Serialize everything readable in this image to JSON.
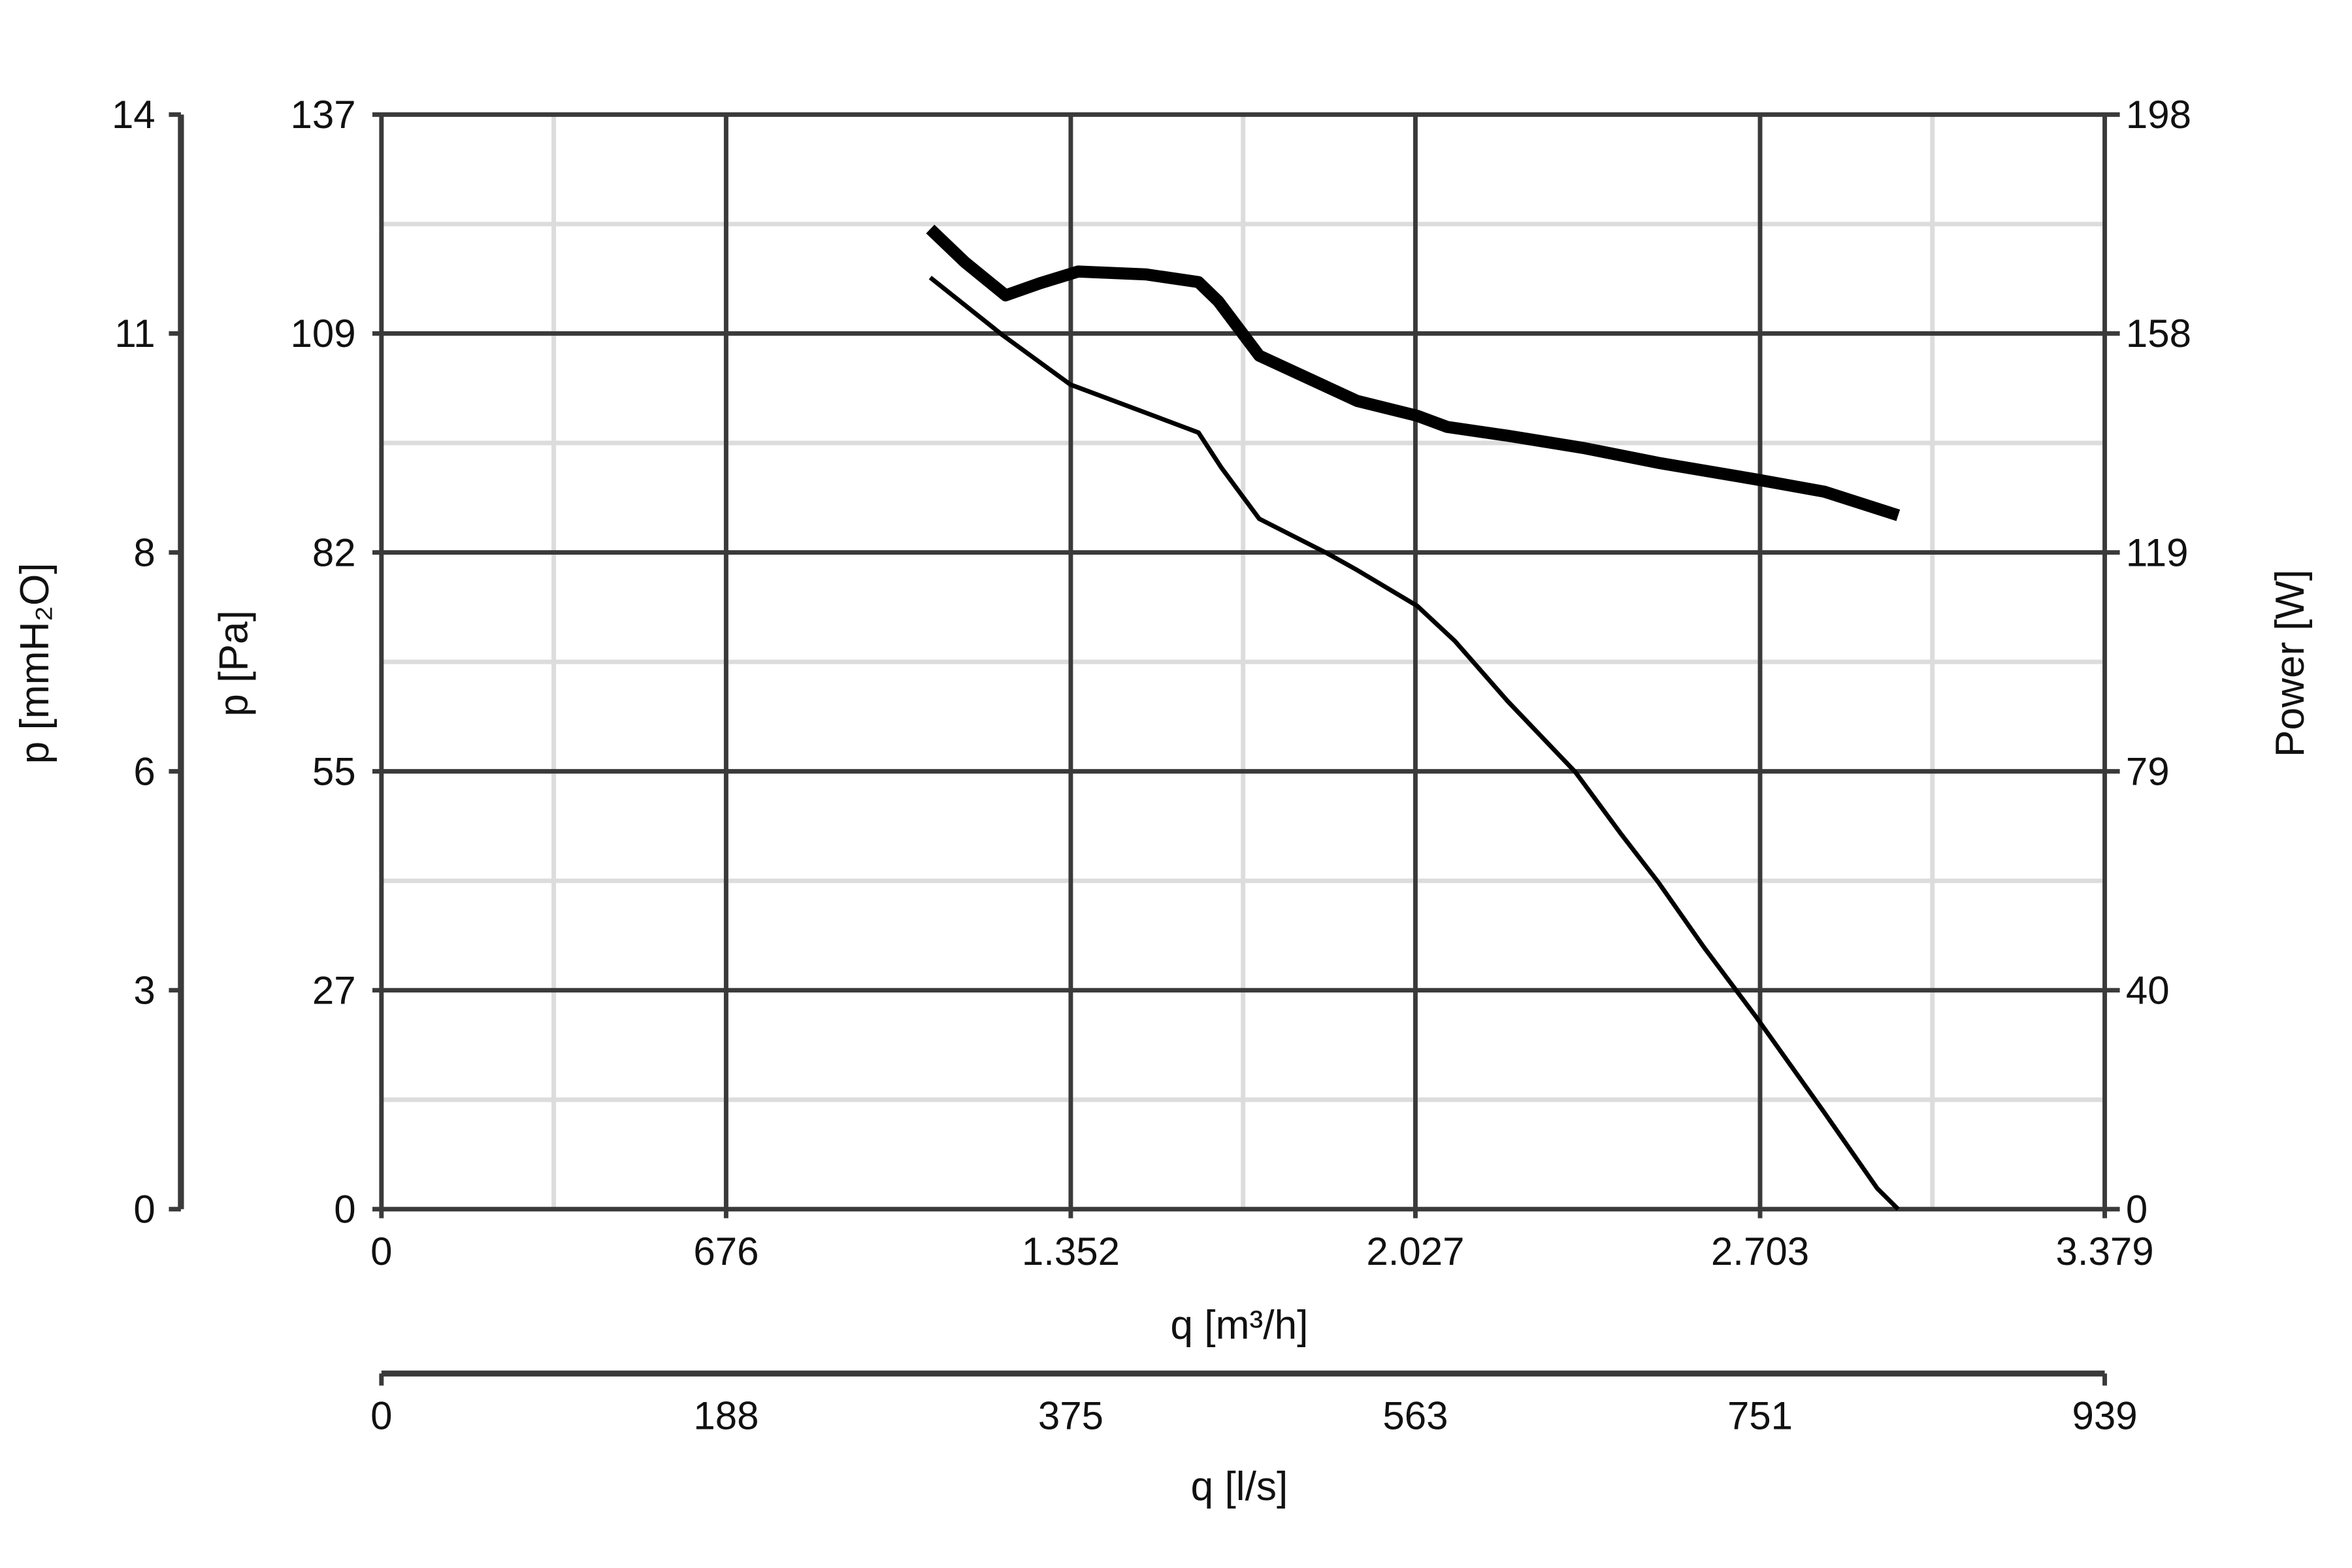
{
  "chart_data": {
    "type": "line",
    "xlabel": "q [m³/h]",
    "xlabel2": "q [l/s]",
    "ylabel_left_outer": "p [mmH₂O]",
    "ylabel_left": "p [Pa]",
    "ylabel_right": "Power [W]",
    "xlim": [
      0,
      3379
    ],
    "ylim_pa": [
      0,
      137
    ],
    "ylim_mmh2o": [
      0,
      14
    ],
    "ylim_w": [
      0,
      198
    ],
    "x_ticks": [
      "0",
      "676",
      "1.352",
      "2.027",
      "2.703",
      "3.379"
    ],
    "x2_ticks": [
      "0",
      "188",
      "375",
      "563",
      "751",
      "939"
    ],
    "y_pa_ticks": [
      "0",
      "27",
      "55",
      "82",
      "109",
      "137"
    ],
    "y_mm_ticks": [
      "0",
      "3",
      "6",
      "8",
      "11",
      "14"
    ],
    "y_w_ticks": [
      "0",
      "40",
      "79",
      "119",
      "158",
      "198"
    ],
    "grid": true,
    "series": [
      {
        "axis": "pa",
        "style": "thin",
        "color": "#000000",
        "x": [
          1076,
          1218,
          1351,
          1469,
          1602,
          1647,
          1721,
          1854,
          1913,
          2031,
          2105,
          2208,
          2341,
          2430,
          2504,
          2593,
          2696,
          2829,
          2933,
          2974
        ],
        "y": [
          116.6,
          109.4,
          103.2,
          100.4,
          97.2,
          92.8,
          86.4,
          82.1,
          80.0,
          75.5,
          71.1,
          63.6,
          54.7,
          47.0,
          40.9,
          32.8,
          24.0,
          12.1,
          2.6,
          0
        ]
      },
      {
        "axis": "w",
        "style": "thick",
        "color": "#000000",
        "x": [
          1076,
          1144,
          1224,
          1292,
          1366,
          1499,
          1602,
          1641,
          1721,
          1824,
          1913,
          2031,
          2090,
          2208,
          2356,
          2504,
          2696,
          2829,
          2974
        ],
        "y": [
          177.3,
          171.3,
          165.3,
          167.5,
          169.6,
          169.1,
          167.7,
          164.2,
          154.4,
          150.0,
          146.2,
          143.5,
          141.5,
          139.9,
          137.7,
          135.0,
          132.0,
          129.8,
          125.5
        ]
      }
    ]
  }
}
